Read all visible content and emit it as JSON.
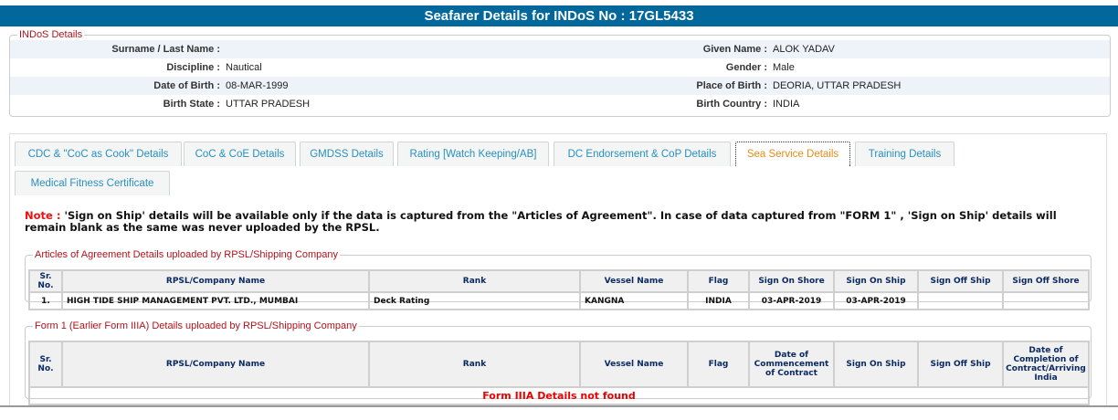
{
  "header": {
    "title": "Seafarer Details for INDoS No : 17GL5433"
  },
  "indos": {
    "legend": "INDoS Details",
    "rows": [
      {
        "l1": "Surname / Last Name :",
        "v1": "",
        "l2": "Given Name :",
        "v2": "ALOK YADAV"
      },
      {
        "l1": "Discipline :",
        "v1": "Nautical",
        "l2": "Gender :",
        "v2": "Male"
      },
      {
        "l1": "Date of Birth :",
        "v1": "08-MAR-1999",
        "l2": "Place of Birth :",
        "v2": "DEORIA, UTTAR PRADESH"
      },
      {
        "l1": "Birth State :",
        "v1": "UTTAR PRADESH",
        "l2": "Birth Country :",
        "v2": "INDIA"
      }
    ]
  },
  "tabs": [
    "CDC & \"CoC as Cook\" Details",
    "CoC & CoE Details",
    "GMDSS Details",
    "Rating [Watch Keeping/AB]",
    "DC Endorsement & CoP Details",
    "Sea Service Details",
    "Training Details",
    "Medical Fitness Certificate"
  ],
  "active_tab": "Sea Service Details",
  "note": {
    "label": "Note :",
    "text": " 'Sign on Ship' details will be available only if the data is captured from the \"Articles of Agreement\". In case of data captured from \"FORM 1\" , 'Sign on Ship' details will remain blank as the same was never uploaded by the RPSL."
  },
  "articles": {
    "legend": "Articles of Agreement Details uploaded by RPSL/Shipping Company",
    "columns": [
      "Sr. No.",
      "RPSL/Company Name",
      "Rank",
      "Vessel Name",
      "Flag",
      "Sign On Shore",
      "Sign On Ship",
      "Sign Off Ship",
      "Sign Off Shore"
    ],
    "rows": [
      [
        "1.",
        "HIGH TIDE SHIP MANAGEMENT PVT. LTD., MUMBAI",
        "Deck Rating",
        "KANGNA",
        "INDIA",
        "03-APR-2019",
        "03-APR-2019",
        "",
        ""
      ]
    ]
  },
  "form1": {
    "legend": "Form 1 (Earlier Form IIIA) Details uploaded by RPSL/Shipping Company",
    "columns": [
      "Sr. No.",
      "RPSL/Company Name",
      "Rank",
      "Vessel Name",
      "Flag",
      "Date of Commencement of Contract",
      "Sign On Ship",
      "Sign Off Ship",
      "Date of Completion of Contract/Arriving India"
    ],
    "empty": "Form IIIA Details not found"
  },
  "colors": {
    "header": "#02679b",
    "tab_text": "#2a8fc0",
    "active_tab": "#e78b1c",
    "legend": "#b0131a"
  }
}
